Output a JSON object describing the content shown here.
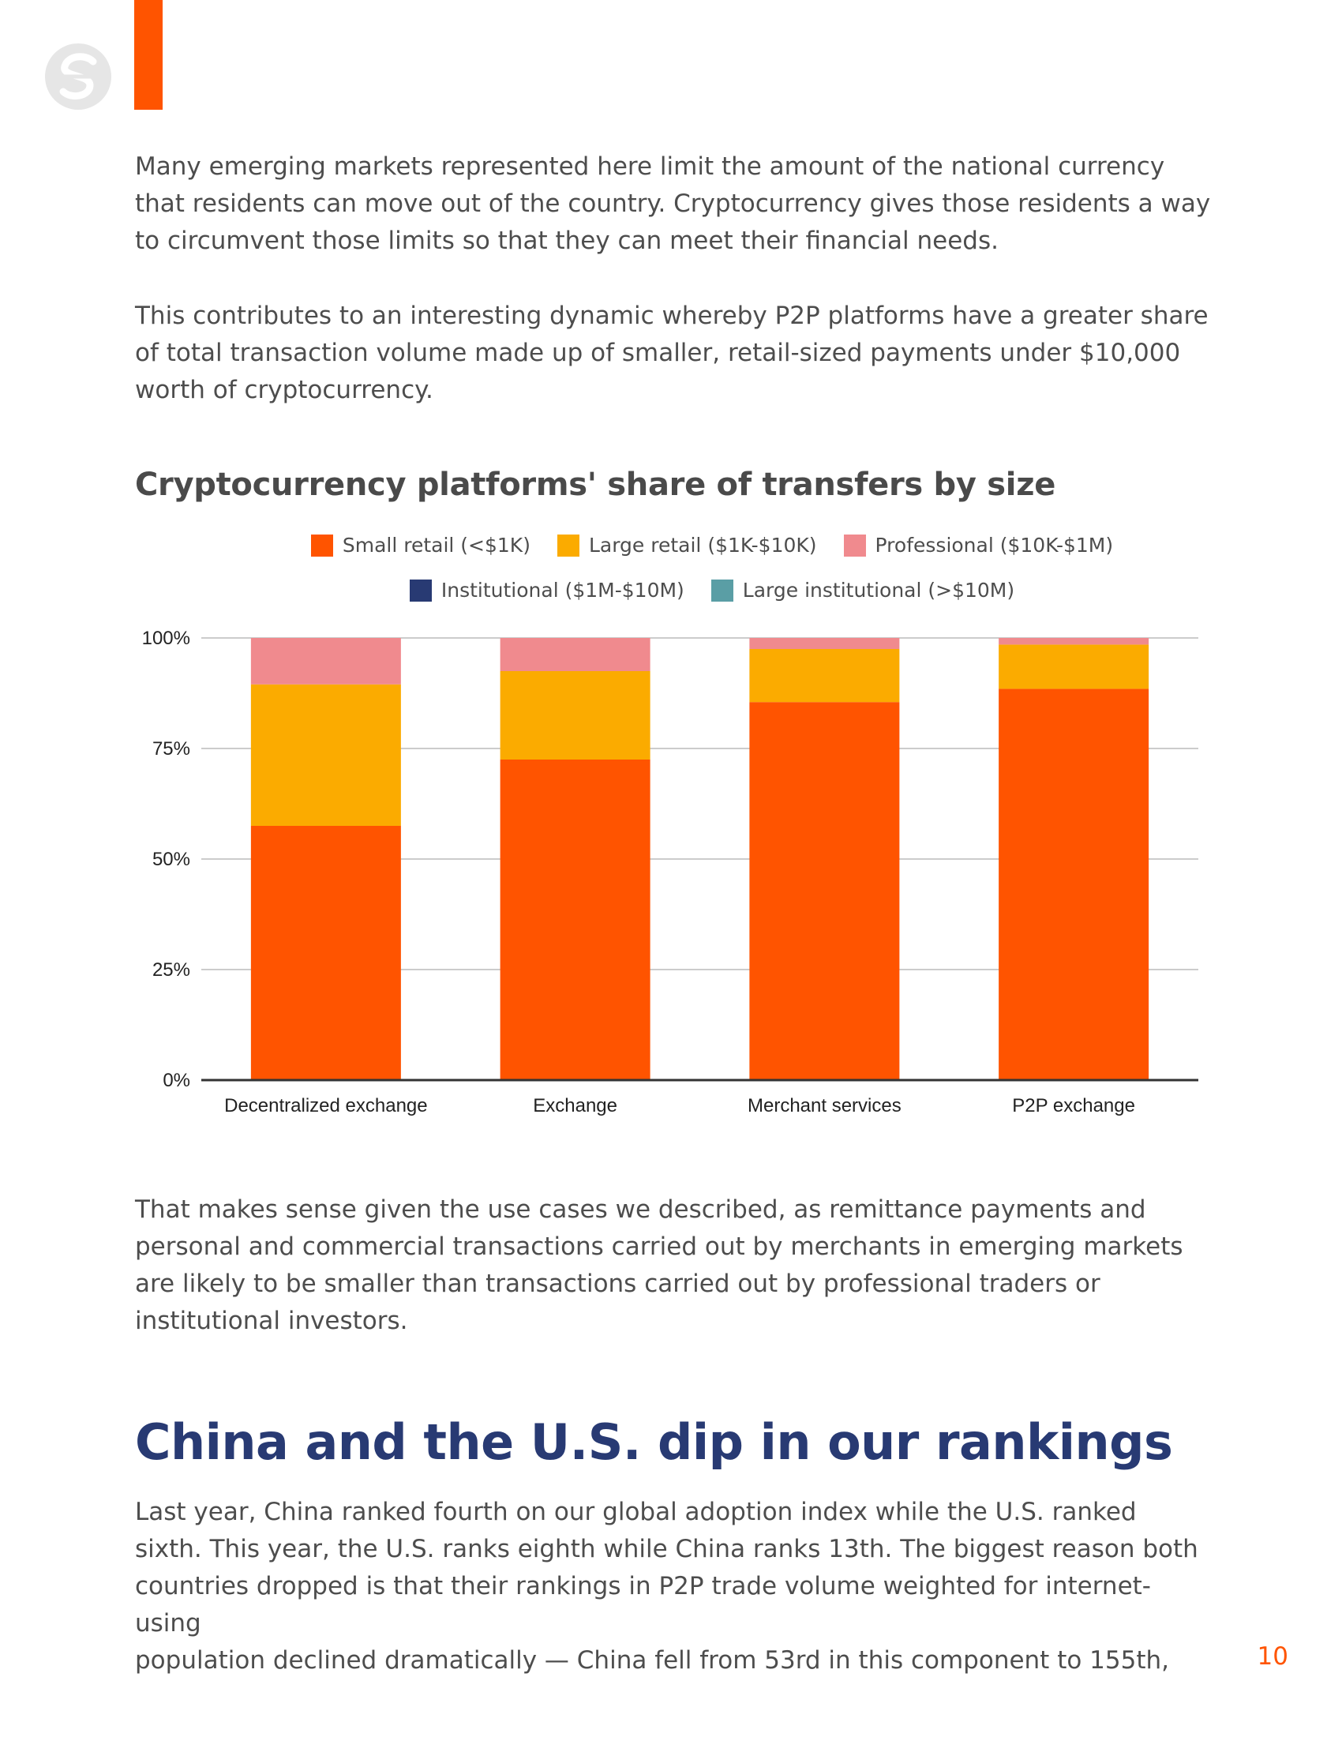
{
  "paragraphs": {
    "p1": "Many emerging markets represented here limit the amount of the national currency\nthat residents can move out of the country. Cryptocurrency gives those residents a way\nto circumvent those limits so that they can meet their financial needs.",
    "p2": "This contributes to an interesting dynamic whereby P2P platforms have a greater share\nof total transaction volume made up of smaller, retail-sized payments under $10,000\nworth of cryptocurrency.",
    "p3": "That makes sense given the use cases we described, as remittance payments and\npersonal and commercial transactions carried out by merchants in emerging markets\nare likely to be smaller than transactions carried out by professional traders or\ninstitutional investors.",
    "p4": "Last year, China ranked fourth on our global adoption index while the U.S. ranked\nsixth. This year, the U.S. ranks eighth while China ranks 13th. The biggest reason both\ncountries dropped is that their rankings in P2P trade volume weighted for internet-using\npopulation declined dramatically — China fell from 53rd in this component to 155th,"
  },
  "section_heading": "China and the U.S. dip in our rankings",
  "page_number": "10",
  "colors": {
    "accent": "#ff5400",
    "heading": "#283a73"
  },
  "chart_data": {
    "type": "bar",
    "stacked": true,
    "title": "Cryptocurrency platforms' share of transfers by size",
    "categories": [
      "Decentralized exchange",
      "Exchange",
      "Merchant services",
      "P2P exchange"
    ],
    "series": [
      {
        "name": "Small retail (<$1K)",
        "color": "#ff5400",
        "values": [
          57.5,
          72.5,
          85.5,
          88.5
        ]
      },
      {
        "name": "Large retail ($1K-$10K)",
        "color": "#fbab00",
        "values": [
          32,
          20,
          12,
          10
        ]
      },
      {
        "name": "Professional ($10K-$1M)",
        "color": "#f08a8e",
        "values": [
          10.5,
          7.5,
          2.5,
          1.5
        ]
      },
      {
        "name": "Institutional ($1M-$10M)",
        "color": "#283a73",
        "values": [
          0,
          0,
          0,
          0
        ]
      },
      {
        "name": "Large institutional (>$10M)",
        "color": "#5a9ea5",
        "values": [
          0,
          0,
          0,
          0
        ]
      }
    ],
    "yticks": [
      "0%",
      "25%",
      "50%",
      "75%",
      "100%"
    ],
    "ylim": [
      0,
      100
    ],
    "legend_position": "top",
    "grid": true,
    "xlabel": "",
    "ylabel": ""
  }
}
